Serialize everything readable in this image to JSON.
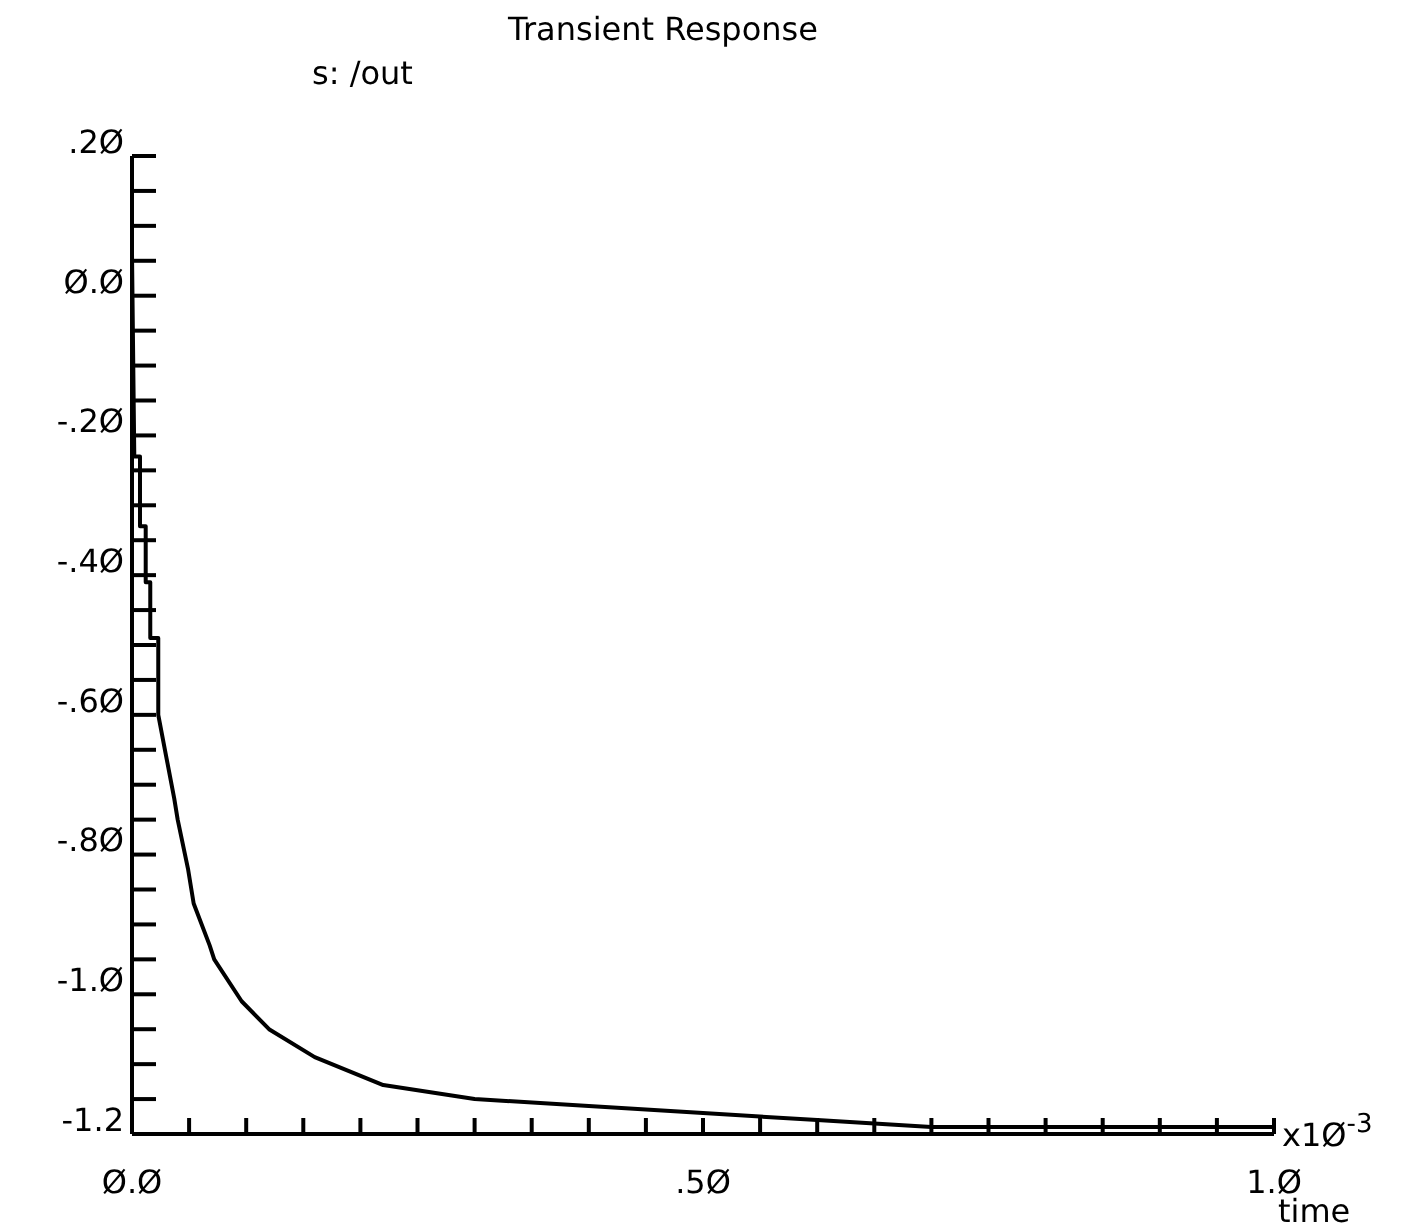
{
  "chart_data": {
    "type": "line",
    "title": "Transient Response",
    "xlabel": "time",
    "annotations": [
      "x1Ø$^{-3}$"
    ],
    "x": [
      0,
      0.002,
      0.007,
      0.007,
      0.012,
      0.012,
      0.016,
      0.016,
      0.023,
      0.023,
      0.03,
      0.037,
      0.04,
      0.049,
      0.054,
      0.068,
      0.072,
      0.096,
      0.12,
      0.16,
      0.19,
      0.22,
      0.3,
      0.4,
      0.5,
      0.6,
      0.7,
      0.8,
      0.9,
      1.0
    ],
    "series": [
      {
        "name": "s: /out",
        "color": "#000000",
        "values": [
          0.06,
          -0.23,
          -0.23,
          -0.33,
          -0.33,
          -0.41,
          -0.41,
          -0.49,
          -0.49,
          -0.6,
          -0.66,
          -0.72,
          -0.75,
          -0.82,
          -0.87,
          -0.93,
          -0.95,
          -1.01,
          -1.05,
          -1.09,
          -1.11,
          -1.13,
          -1.15,
          -1.16,
          -1.17,
          -1.18,
          -1.19,
          -1.19,
          -1.19,
          -1.19
        ]
      }
    ],
    "xlim": [
      0,
      1.0
    ],
    "ylim": [
      -1.2,
      0.2
    ],
    "xticks": [
      {
        "value": 0,
        "label": "Ø.Ø"
      },
      {
        "value": 0.05,
        "label": null
      },
      {
        "value": 0.1,
        "label": null
      },
      {
        "value": 0.15,
        "label": null
      },
      {
        "value": 0.2,
        "label": null
      },
      {
        "value": 0.25,
        "label": null
      },
      {
        "value": 0.3,
        "label": null
      },
      {
        "value": 0.35,
        "label": null
      },
      {
        "value": 0.4,
        "label": null
      },
      {
        "value": 0.45,
        "label": null
      },
      {
        "value": 0.5,
        "label": ".5Ø"
      },
      {
        "value": 0.55,
        "label": null
      },
      {
        "value": 0.6,
        "label": null
      },
      {
        "value": 0.65,
        "label": null
      },
      {
        "value": 0.7,
        "label": null
      },
      {
        "value": 0.75,
        "label": null
      },
      {
        "value": 0.8,
        "label": null
      },
      {
        "value": 0.85,
        "label": null
      },
      {
        "value": 0.9,
        "label": null
      },
      {
        "value": 0.95,
        "label": null
      },
      {
        "value": 1.0,
        "label": "1.Ø"
      }
    ],
    "yticks": [
      {
        "value": -1.2,
        "label": "-1.2"
      },
      {
        "value": -1.15,
        "label": null
      },
      {
        "value": -1.1,
        "label": null
      },
      {
        "value": -1.05,
        "label": null
      },
      {
        "value": -1.0,
        "label": "-1.Ø"
      },
      {
        "value": -0.95,
        "label": null
      },
      {
        "value": -0.9,
        "label": null
      },
      {
        "value": -0.85,
        "label": null
      },
      {
        "value": -0.8,
        "label": "-.8Ø"
      },
      {
        "value": -0.75,
        "label": null
      },
      {
        "value": -0.7,
        "label": null
      },
      {
        "value": -0.65,
        "label": null
      },
      {
        "value": -0.6,
        "label": "-.6Ø"
      },
      {
        "value": -0.55,
        "label": null
      },
      {
        "value": -0.5,
        "label": null
      },
      {
        "value": -0.45,
        "label": null
      },
      {
        "value": -0.4,
        "label": "-.4Ø"
      },
      {
        "value": -0.35,
        "label": null
      },
      {
        "value": -0.3,
        "label": null
      },
      {
        "value": -0.25,
        "label": null
      },
      {
        "value": -0.2,
        "label": "-.2Ø"
      },
      {
        "value": -0.15,
        "label": null
      },
      {
        "value": -0.1,
        "label": null
      },
      {
        "value": -0.05,
        "label": null
      },
      {
        "value": 0,
        "label": "Ø.Ø"
      },
      {
        "value": 0.05,
        "label": null
      },
      {
        "value": 0.1,
        "label": null
      },
      {
        "value": 0.15,
        "label": null
      },
      {
        "value": 0.2,
        "label": ".2Ø"
      }
    ],
    "grid": false,
    "legend": "top left",
    "marker": "none",
    "line_style": "solid"
  }
}
